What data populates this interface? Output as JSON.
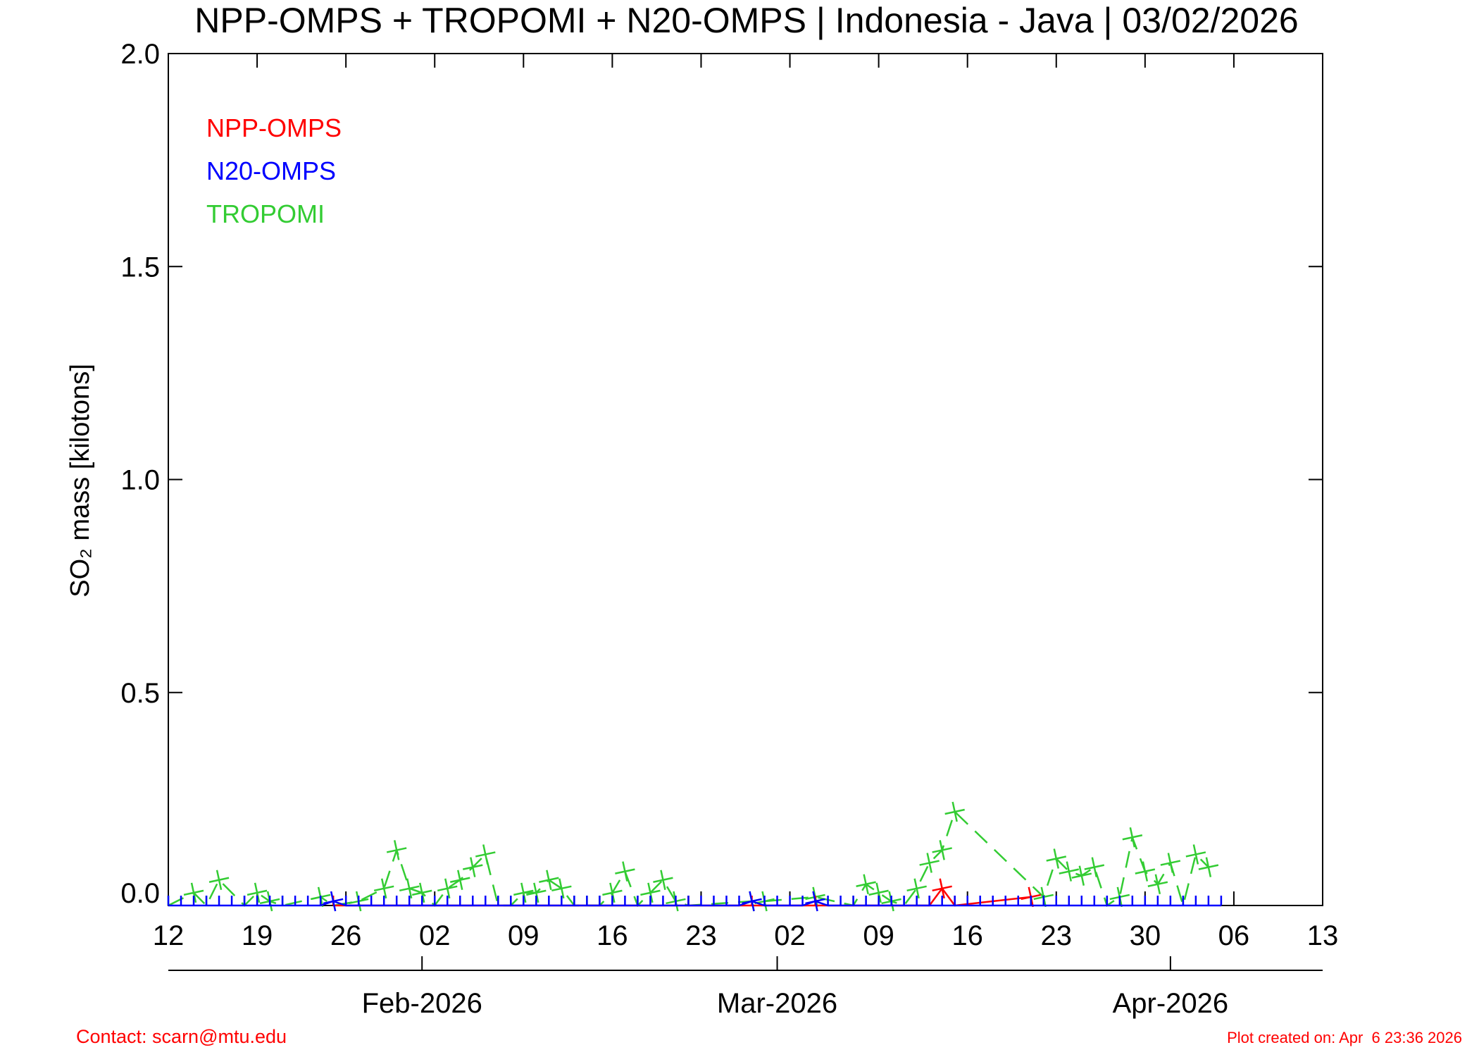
{
  "chart_data": {
    "type": "line",
    "title": "NPP-OMPS + TROPOMI + N20-OMPS | Indonesia - Java | 03/02/2026",
    "y_label": "SO₂ mass [kilotons]",
    "xlim": [
      "2026-01-12",
      "2026-04-13"
    ],
    "xticks": [
      {
        "value": "2026-01-12",
        "label": "12"
      },
      {
        "value": "2026-01-19",
        "label": "19"
      },
      {
        "value": "2026-01-26",
        "label": "26"
      },
      {
        "value": "2026-02-02",
        "label": "02"
      },
      {
        "value": "2026-02-09",
        "label": "09"
      },
      {
        "value": "2026-02-16",
        "label": "16"
      },
      {
        "value": "2026-02-23",
        "label": "23"
      },
      {
        "value": "2026-03-02",
        "label": "02"
      },
      {
        "value": "2026-03-09",
        "label": "09"
      },
      {
        "value": "2026-03-16",
        "label": "16"
      },
      {
        "value": "2026-03-23",
        "label": "23"
      },
      {
        "value": "2026-03-30",
        "label": "30"
      },
      {
        "value": "2026-04-06",
        "label": "06"
      },
      {
        "value": "2026-04-13",
        "label": "13"
      }
    ],
    "month_ticks": [
      {
        "value": "2026-02-01",
        "label": "Feb-2026"
      },
      {
        "value": "2026-03-01",
        "label": "Mar-2026"
      },
      {
        "value": "2026-04-01",
        "label": "Apr-2026"
      }
    ],
    "ylim": [
      0,
      2
    ],
    "yticks": [
      {
        "value": 0,
        "label": "0.0"
      },
      {
        "value": 0.5,
        "label": "0.5"
      },
      {
        "value": 1,
        "label": "1.0"
      },
      {
        "value": 1.5,
        "label": "1.5"
      },
      {
        "value": 2,
        "label": "2.0"
      }
    ],
    "series": [
      {
        "name": "TROPOMI",
        "color": "#33cc33",
        "linestyle": "dashed",
        "x": [
          "2026-01-12",
          "2026-01-14",
          "2026-01-15",
          "2026-01-16",
          "2026-01-18",
          "2026-01-19",
          "2026-01-20",
          "2026-01-21",
          "2026-01-24",
          "2026-01-25",
          "2026-01-27",
          "2026-01-29",
          "2026-01-30",
          "2026-01-31",
          "2026-02-01",
          "2026-02-02",
          "2026-02-03",
          "2026-02-04",
          "2026-02-05",
          "2026-02-06",
          "2026-02-07",
          "2026-02-08",
          "2026-02-09",
          "2026-02-10",
          "2026-02-11",
          "2026-02-12",
          "2026-02-13",
          "2026-02-14",
          "2026-02-15",
          "2026-02-16",
          "2026-02-17",
          "2026-02-18",
          "2026-02-19",
          "2026-02-20",
          "2026-02-21",
          "2026-02-22",
          "2026-02-27",
          "2026-02-28",
          "2026-03-04",
          "2026-03-07",
          "2026-03-08",
          "2026-03-09",
          "2026-03-10",
          "2026-03-11",
          "2026-03-12",
          "2026-03-13",
          "2026-03-14",
          "2026-03-15",
          "2026-03-22",
          "2026-03-23",
          "2026-03-24",
          "2026-03-25",
          "2026-03-26",
          "2026-03-27",
          "2026-03-28",
          "2026-03-29",
          "2026-03-30",
          "2026-03-31",
          "2026-04-01",
          "2026-04-02",
          "2026-04-03",
          "2026-04-04"
        ],
        "values": [
          0,
          0.03,
          0,
          0.06,
          0,
          0.03,
          0.01,
          0,
          0.02,
          0,
          0.01,
          0.04,
          0.13,
          0.04,
          0.03,
          0,
          0.04,
          0.06,
          0.09,
          0.12,
          0,
          0,
          0.03,
          0.03,
          0.06,
          0.04,
          0,
          0,
          0,
          0.03,
          0.08,
          0,
          0.03,
          0.06,
          0.01,
          0,
          0.01,
          0.01,
          0.02,
          0,
          0.05,
          0.03,
          0.01,
          0,
          0.04,
          0.1,
          0.13,
          0.22,
          0.02,
          0.11,
          0.08,
          0.07,
          0.09,
          0,
          0.02,
          0.16,
          0.08,
          0.05,
          0.1,
          0,
          0.12,
          0.09
        ]
      },
      {
        "name": "NPP-OMPS",
        "color": "#ff0000",
        "linestyle": "solid",
        "x": [
          "2026-01-25",
          "2026-02-22",
          "2026-02-27",
          "2026-03-04",
          "2026-03-13",
          "2026-03-14",
          "2026-03-15",
          "2026-03-21"
        ],
        "values": [
          0,
          0,
          0,
          0,
          0,
          0.04,
          0,
          0.02
        ]
      },
      {
        "name": "N20-OMPS",
        "color": "#0000ff",
        "linestyle": "solid",
        "x": [
          "2026-01-12",
          "2026-01-13",
          "2026-01-14",
          "2026-01-15",
          "2026-01-16",
          "2026-01-17",
          "2026-01-18",
          "2026-01-19",
          "2026-01-20",
          "2026-01-21",
          "2026-01-22",
          "2026-01-23",
          "2026-01-24",
          "2026-01-25",
          "2026-01-26",
          "2026-01-27",
          "2026-01-28",
          "2026-01-29",
          "2026-01-30",
          "2026-01-31",
          "2026-02-01",
          "2026-02-02",
          "2026-02-03",
          "2026-02-04",
          "2026-02-05",
          "2026-02-06",
          "2026-02-07",
          "2026-02-08",
          "2026-02-09",
          "2026-02-10",
          "2026-02-11",
          "2026-02-12",
          "2026-02-13",
          "2026-02-14",
          "2026-02-15",
          "2026-02-16",
          "2026-02-17",
          "2026-02-18",
          "2026-02-19",
          "2026-02-20",
          "2026-02-21",
          "2026-02-22",
          "2026-02-23",
          "2026-02-24",
          "2026-02-25",
          "2026-02-26",
          "2026-02-27",
          "2026-02-28",
          "2026-03-01",
          "2026-03-02",
          "2026-03-03",
          "2026-03-04",
          "2026-03-05",
          "2026-03-06",
          "2026-03-07",
          "2026-03-08",
          "2026-03-09",
          "2026-03-10",
          "2026-03-11",
          "2026-03-12",
          "2026-03-13",
          "2026-03-14",
          "2026-03-15",
          "2026-03-16",
          "2026-03-17",
          "2026-03-18",
          "2026-03-19",
          "2026-03-20",
          "2026-03-21",
          "2026-03-22",
          "2026-03-23",
          "2026-03-24",
          "2026-03-25",
          "2026-03-26",
          "2026-03-27",
          "2026-03-28",
          "2026-03-29",
          "2026-03-30",
          "2026-03-31",
          "2026-04-01",
          "2026-04-02",
          "2026-04-03",
          "2026-04-04",
          "2026-04-05"
        ],
        "values": [
          0,
          0,
          0,
          0,
          0,
          0,
          0,
          0,
          0,
          0,
          0,
          0,
          0,
          0.01,
          0,
          0,
          0,
          0,
          0,
          0,
          0,
          0,
          0,
          0,
          0,
          0,
          0,
          0,
          0,
          0,
          0,
          0,
          0,
          0,
          0,
          0,
          0,
          0,
          0,
          0,
          0,
          0,
          0,
          0,
          0,
          0,
          0.01,
          0,
          0,
          0,
          0,
          0.01,
          0,
          0,
          0,
          0,
          0,
          0,
          0,
          0,
          0,
          0,
          0,
          0,
          0,
          0,
          0,
          0,
          0,
          0,
          0,
          0,
          0,
          0,
          0,
          0,
          0,
          0,
          0,
          0,
          0,
          0,
          0,
          0
        ]
      }
    ],
    "legend_order": [
      1,
      2,
      0
    ],
    "legend_position": "upper left",
    "footer_left": "Contact: scarn@mtu.edu",
    "footer_right": "Plot created on: Apr  6 23:36 2026"
  }
}
